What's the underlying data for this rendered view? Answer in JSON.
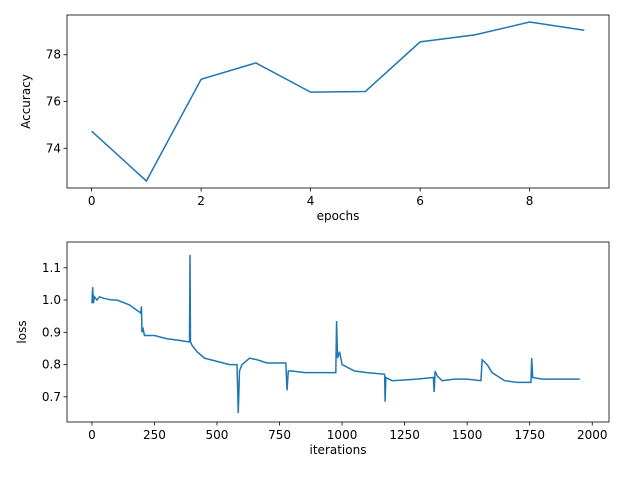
{
  "chart_data": [
    {
      "type": "line",
      "xlabel": "epochs",
      "ylabel": "Accuracy",
      "x": [
        0,
        1,
        2,
        3,
        4,
        5,
        6,
        7,
        8,
        9
      ],
      "series": [
        {
          "color": "#1f77b4",
          "values": [
            74.73,
            72.6,
            76.95,
            77.65,
            76.4,
            76.43,
            78.55,
            78.85,
            79.4,
            79.05
          ]
        }
      ],
      "xlim": [
        -0.45,
        9.45
      ],
      "ylim": [
        72.3,
        79.7
      ],
      "xticks": [
        0,
        2,
        4,
        6,
        8
      ],
      "yticks": [
        74,
        76,
        78
      ]
    },
    {
      "type": "line",
      "xlabel": "iterations",
      "ylabel": "loss",
      "x": [
        0,
        3,
        6,
        10,
        20,
        30,
        50,
        80,
        100,
        150,
        195,
        198,
        200,
        205,
        210,
        250,
        300,
        350,
        390,
        392,
        394,
        400,
        420,
        450,
        500,
        550,
        580,
        585,
        590,
        600,
        630,
        660,
        700,
        775,
        780,
        785,
        800,
        850,
        900,
        975,
        978,
        982,
        990,
        1000,
        1050,
        1100,
        1170,
        1172,
        1175,
        1200,
        1300,
        1365,
        1368,
        1372,
        1380,
        1400,
        1450,
        1500,
        1555,
        1560,
        1580,
        1600,
        1650,
        1700,
        1755,
        1758,
        1762,
        1800,
        1900,
        1950
      ],
      "series": [
        {
          "color": "#1f77b4",
          "values": [
            0.99,
            1.04,
            0.99,
            1.01,
            1.0,
            1.01,
            1.005,
            1.0,
            1.0,
            0.985,
            0.96,
            0.98,
            0.9,
            0.91,
            0.89,
            0.89,
            0.88,
            0.875,
            0.87,
            1.14,
            0.87,
            0.86,
            0.84,
            0.82,
            0.81,
            0.8,
            0.8,
            0.65,
            0.78,
            0.8,
            0.82,
            0.815,
            0.805,
            0.805,
            0.72,
            0.78,
            0.78,
            0.775,
            0.775,
            0.775,
            0.935,
            0.82,
            0.84,
            0.8,
            0.78,
            0.775,
            0.77,
            0.685,
            0.76,
            0.75,
            0.755,
            0.76,
            0.715,
            0.78,
            0.765,
            0.75,
            0.755,
            0.755,
            0.75,
            0.815,
            0.8,
            0.775,
            0.75,
            0.745,
            0.745,
            0.82,
            0.76,
            0.755,
            0.755,
            0.755
          ]
        }
      ],
      "xlim": [
        -99.6,
        2067
      ],
      "ylim": [
        0.622,
        1.18
      ],
      "xticks": [
        0,
        250,
        500,
        750,
        1000,
        1250,
        1500,
        1750,
        2000
      ],
      "yticks": [
        0.7,
        0.8,
        0.9,
        {
          "value": 1,
          "label": "1.0"
        },
        1.1
      ]
    }
  ]
}
